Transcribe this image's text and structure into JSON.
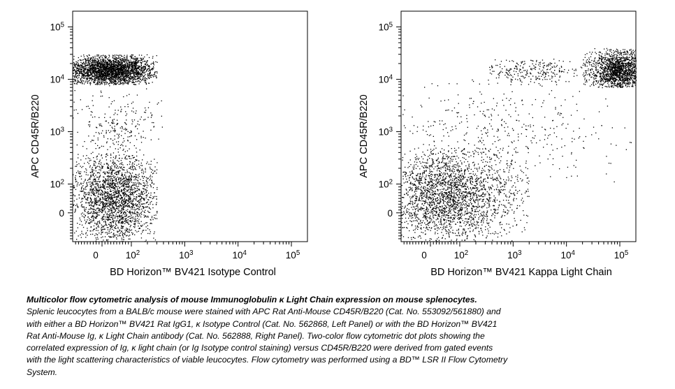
{
  "chart_data": [
    {
      "type": "scatter",
      "panel": "Left Panel",
      "xlabel": "BD Horizon™ BV421 Isotype Control",
      "ylabel": "APC CD45R/B220",
      "x_scale": "biexponential",
      "y_scale": "biexponential",
      "x_ticks": [
        "0",
        "10^2",
        "10^3",
        "10^4",
        "10^5"
      ],
      "y_ticks": [
        "0",
        "10^2",
        "10^3",
        "10^4",
        "10^5"
      ],
      "xlim": [
        -100,
        200000
      ],
      "ylim": [
        -100,
        200000
      ],
      "grid": false,
      "legend": "none",
      "populations": [
        {
          "x_center": 30,
          "y_center": 15000,
          "x_range": [
            -100,
            300
          ],
          "y_range": [
            8000,
            30000
          ],
          "events": 2600
        },
        {
          "x_center": 40,
          "y_center": 50,
          "x_range": [
            -100,
            300
          ],
          "y_range": [
            -100,
            400
          ],
          "events": 2200
        },
        {
          "x_center": 50,
          "y_center": 1000,
          "x_range": [
            -100,
            400
          ],
          "y_range": [
            400,
            8000
          ],
          "events": 250
        }
      ]
    },
    {
      "type": "scatter",
      "panel": "Right Panel",
      "xlabel": "BD Horizon™ BV421 Kappa Light Chain",
      "ylabel": "APC CD45R/B220",
      "x_scale": "biexponential",
      "y_scale": "biexponential",
      "x_ticks": [
        "0",
        "10^2",
        "10^3",
        "10^4",
        "10^5"
      ],
      "y_ticks": [
        "0",
        "10^2",
        "10^3",
        "10^4",
        "10^5"
      ],
      "xlim": [
        -100,
        200000
      ],
      "ylim": [
        -100,
        200000
      ],
      "grid": false,
      "legend": "none",
      "populations": [
        {
          "x_center": 100000,
          "y_center": 15000,
          "x_range": [
            20000,
            200000
          ],
          "y_range": [
            7000,
            40000
          ],
          "events": 1500
        },
        {
          "x_center": 60,
          "y_center": 60,
          "x_range": [
            -100,
            2000
          ],
          "y_range": [
            -100,
            500
          ],
          "events": 2400
        },
        {
          "x_center": 2000,
          "y_center": 15000,
          "x_range": [
            300,
            30000
          ],
          "y_range": [
            8000,
            25000
          ],
          "events": 260
        },
        {
          "x_center": 500,
          "y_center": 1000,
          "x_range": [
            -100,
            200000
          ],
          "y_range": [
            100,
            10000
          ],
          "events": 420
        }
      ]
    }
  ],
  "caption": {
    "title": "Multicolor flow cytometric analysis of mouse Immunoglobulin κ Light Chain expression on mouse splenocytes.",
    "lines": [
      "Splenic leucocytes from a BALB/c mouse were stained with APC Rat Anti-Mouse CD45R/B220 (Cat. No. 553092/561880) and",
      "with either a BD Horizon™ BV421 Rat IgG1, κ Isotype Control (Cat. No. 562868, Left Panel) or with the BD Horizon™ BV421",
      "Rat Anti-Mouse Ig, κ Light Chain antibody (Cat. No. 562888, Right Panel).  Two-color flow cytometric dot plots showing the",
      "correlated expression of Ig, κ light chain (or Ig Isotype control staining) versus CD45R/B220 were derived from gated events",
      "with the light scattering characteristics of viable leucocytes. Flow cytometry was performed using a BD™ LSR II Flow Cytometry",
      "System."
    ]
  }
}
